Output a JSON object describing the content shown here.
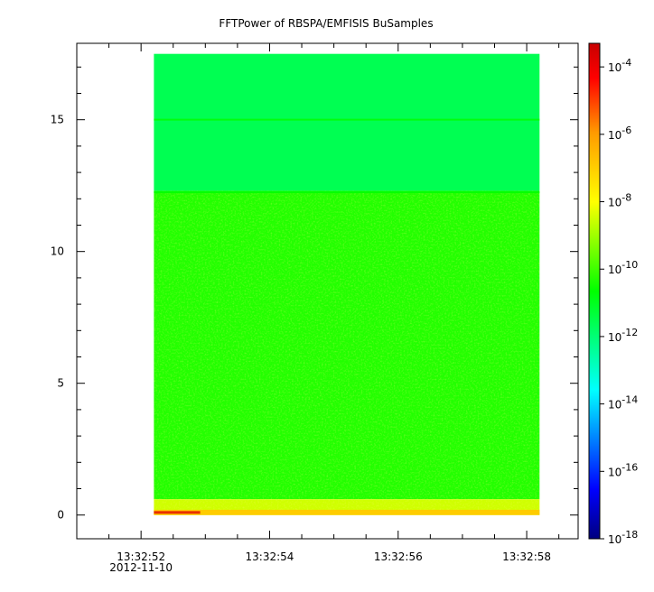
{
  "chart_data": {
    "type": "heatmap",
    "title": "FFTPower of RBSPA/EMFISIS  BuSamples",
    "xlabel": "",
    "ylabel": "",
    "x_ticks": [
      {
        "label": "13:32:52",
        "sub": "2012-11-10",
        "t": 52
      },
      {
        "label": "13:32:54",
        "sub": "",
        "t": 54
      },
      {
        "label": "13:32:56",
        "sub": "",
        "t": 56
      },
      {
        "label": "13:32:58",
        "sub": "",
        "t": 58
      }
    ],
    "x_minor_ticks": [
      51,
      51.5,
      52.5,
      53,
      53.5,
      54.5,
      55,
      55.5,
      56.5,
      57,
      57.5,
      58.5,
      59
    ],
    "xlim": [
      51,
      58.8
    ],
    "data_x_range": [
      52.2,
      58.2
    ],
    "y_ticks": [
      0,
      5,
      10,
      15
    ],
    "ylim": [
      -0.9,
      17.9
    ],
    "data_y_range": [
      0,
      17.5
    ],
    "colorbar": {
      "scale": "log",
      "range_exponent": [
        -18,
        -3.3
      ],
      "tick_exponents": [
        -4,
        -6,
        -8,
        -10,
        -12,
        -14,
        -16,
        -18
      ],
      "tick_labels": [
        "10",
        "10",
        "10",
        "10",
        "10",
        "10",
        "10",
        "10"
      ],
      "tick_sup": [
        "-4",
        "-6",
        "-8",
        "-10",
        "-12",
        "-14",
        "-16",
        "-18"
      ],
      "colors": [
        "#00007f",
        "#0000ff",
        "#00ffff",
        "#00ff00",
        "#ffff00",
        "#ff7f00",
        "#ff0000",
        "#d00000"
      ]
    },
    "bands": [
      {
        "y_from": 12.3,
        "y_to": 17.5,
        "level": -11.6,
        "desc": "upper band"
      },
      {
        "y_from": 0.6,
        "y_to": 12.3,
        "level": -10.3,
        "desc": "middle band"
      },
      {
        "y_from": 0,
        "y_to": 0.6,
        "level": -8.5,
        "desc": "low band"
      }
    ],
    "line_features": [
      {
        "y": 15.0,
        "level": -10.8
      },
      {
        "y": 12.25,
        "level": -10.6
      }
    ]
  }
}
